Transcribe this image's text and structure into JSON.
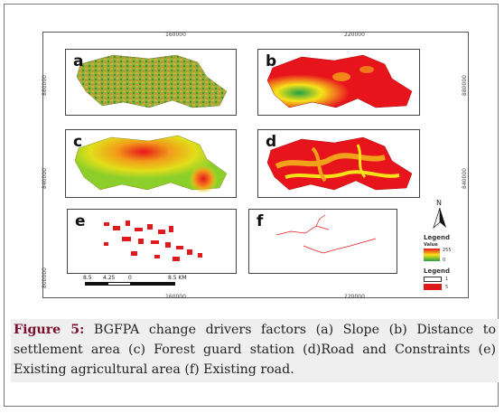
{
  "map": {
    "x_ticks": [
      "160000",
      "220000"
    ],
    "y_ticks": [
      "880000",
      "840000",
      "800000"
    ],
    "panels": [
      {
        "letter": "a"
      },
      {
        "letter": "b"
      },
      {
        "letter": "c"
      },
      {
        "letter": "d"
      },
      {
        "letter": "e"
      },
      {
        "letter": "f"
      }
    ],
    "north_label": "N",
    "legend1": {
      "title": "Legend",
      "subtitle": "Value",
      "high": "255",
      "low": "0"
    },
    "legend2": {
      "title": "Legend",
      "val1": "1",
      "val2": "5"
    },
    "scale_bar": {
      "ticks": [
        "8.5",
        "4.25",
        "0",
        "8.5 KM"
      ]
    },
    "colors": {
      "suitability_high": "#e8141c",
      "suitability_mid": "#f7e21a",
      "suitability_low": "#21a045",
      "red_class": "#e01a1a"
    }
  },
  "caption": {
    "label": "Figure 5:",
    "text": " BGFPA change drivers factors (a) Slope (b) Distance to settlement area (c) Forest guard station (d)Road and Constraints (e) Existing agricultural area (f) Existing road."
  }
}
